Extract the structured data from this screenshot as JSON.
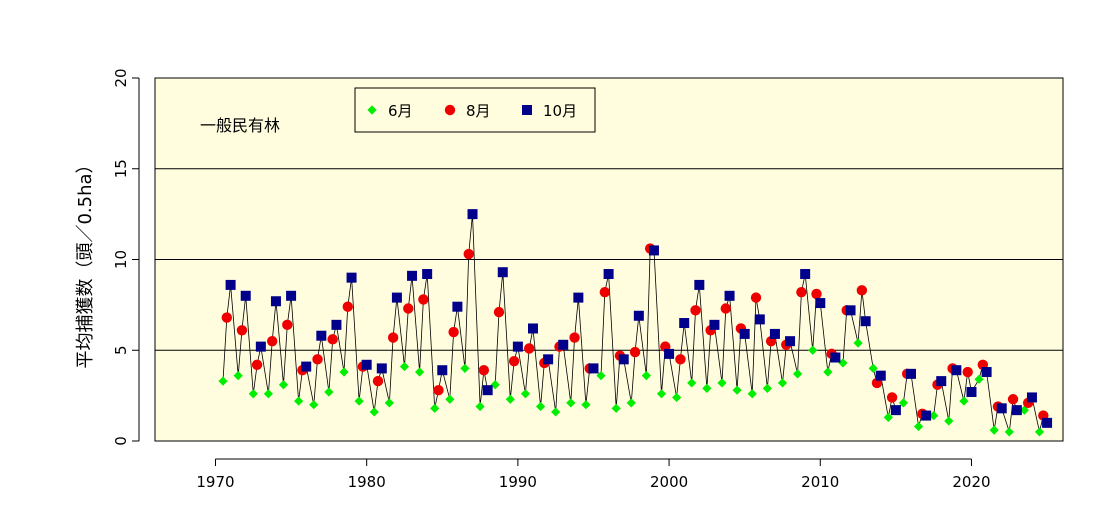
{
  "chart_data": {
    "type": "line",
    "ylabel": "平均捕獲数（頭／0.5ha）",
    "annotation": "一般民有林",
    "xlim": [
      1966,
      2025
    ],
    "ylim": [
      0,
      20
    ],
    "xticks": [
      1970,
      1980,
      1990,
      2000,
      2010,
      2020
    ],
    "yticks": [
      0,
      5,
      10,
      15,
      20
    ],
    "grid_lines_y": [
      5,
      10,
      15
    ],
    "legend_position": "top-center",
    "background_color": "#FFFDDD",
    "connector_color": "#000000",
    "series": [
      {
        "name": "6月",
        "marker": "diamond",
        "color": "#00EE00",
        "points": [
          [
            1970.5,
            3.3
          ],
          [
            1971.5,
            3.6
          ],
          [
            1972.5,
            2.6
          ],
          [
            1973.5,
            2.6
          ],
          [
            1974.5,
            3.1
          ],
          [
            1975.5,
            2.2
          ],
          [
            1976.5,
            2.0
          ],
          [
            1977.5,
            2.7
          ],
          [
            1978.5,
            3.8
          ],
          [
            1979.5,
            2.2
          ],
          [
            1980.5,
            1.6
          ],
          [
            1981.5,
            2.1
          ],
          [
            1982.5,
            4.1
          ],
          [
            1983.5,
            3.8
          ],
          [
            1984.5,
            1.8
          ],
          [
            1985.5,
            2.3
          ],
          [
            1986.5,
            4.0
          ],
          [
            1987.5,
            1.9
          ],
          [
            1988.5,
            3.1
          ],
          [
            1989.5,
            2.3
          ],
          [
            1990.5,
            2.6
          ],
          [
            1991.5,
            1.9
          ],
          [
            1992.5,
            1.6
          ],
          [
            1993.5,
            2.1
          ],
          [
            1994.5,
            2.0
          ],
          [
            1995.5,
            3.6
          ],
          [
            1996.5,
            1.8
          ],
          [
            1997.5,
            2.1
          ],
          [
            1998.5,
            3.6
          ],
          [
            1999.5,
            2.6
          ],
          [
            2000.5,
            2.4
          ],
          [
            2001.5,
            3.2
          ],
          [
            2002.5,
            2.9
          ],
          [
            2003.5,
            3.2
          ],
          [
            2004.5,
            2.8
          ],
          [
            2005.5,
            2.6
          ],
          [
            2006.5,
            2.9
          ],
          [
            2007.5,
            3.2
          ],
          [
            2008.5,
            3.7
          ],
          [
            2009.5,
            5.0
          ],
          [
            2010.5,
            3.8
          ],
          [
            2011.5,
            4.3
          ],
          [
            2012.5,
            5.4
          ],
          [
            2013.5,
            4.0
          ],
          [
            2014.5,
            1.3
          ],
          [
            2015.5,
            2.1
          ],
          [
            2016.5,
            0.8
          ],
          [
            2017.5,
            1.4
          ],
          [
            2018.5,
            1.1
          ],
          [
            2019.5,
            2.2
          ],
          [
            2020.5,
            3.4
          ],
          [
            2021.5,
            0.6
          ],
          [
            2022.5,
            0.5
          ],
          [
            2023.5,
            1.7
          ],
          [
            2024.5,
            0.5
          ]
        ]
      },
      {
        "name": "8月",
        "marker": "circle",
        "color": "#EE0000",
        "points": [
          [
            1970.75,
            6.8
          ],
          [
            1971.75,
            6.1
          ],
          [
            1972.75,
            4.2
          ],
          [
            1973.75,
            5.5
          ],
          [
            1974.75,
            6.4
          ],
          [
            1975.75,
            3.9
          ],
          [
            1976.75,
            4.5
          ],
          [
            1977.75,
            5.6
          ],
          [
            1978.75,
            7.4
          ],
          [
            1979.75,
            4.1
          ],
          [
            1980.75,
            3.3
          ],
          [
            1981.75,
            5.7
          ],
          [
            1982.75,
            7.3
          ],
          [
            1983.75,
            7.8
          ],
          [
            1984.75,
            2.8
          ],
          [
            1985.75,
            6.0
          ],
          [
            1986.75,
            10.3
          ],
          [
            1987.75,
            3.9
          ],
          [
            1988.75,
            7.1
          ],
          [
            1989.75,
            4.4
          ],
          [
            1990.75,
            5.1
          ],
          [
            1991.75,
            4.3
          ],
          [
            1992.75,
            5.2
          ],
          [
            1993.75,
            5.7
          ],
          [
            1994.75,
            4.0
          ],
          [
            1995.75,
            8.2
          ],
          [
            1996.75,
            4.7
          ],
          [
            1997.75,
            4.9
          ],
          [
            1998.75,
            10.6
          ],
          [
            1999.75,
            5.2
          ],
          [
            2000.75,
            4.5
          ],
          [
            2001.75,
            7.2
          ],
          [
            2002.75,
            6.1
          ],
          [
            2003.75,
            7.3
          ],
          [
            2004.75,
            6.2
          ],
          [
            2005.75,
            7.9
          ],
          [
            2006.75,
            5.5
          ],
          [
            2007.75,
            5.3
          ],
          [
            2008.75,
            8.2
          ],
          [
            2009.75,
            8.1
          ],
          [
            2010.75,
            4.8
          ],
          [
            2011.75,
            7.2
          ],
          [
            2012.75,
            8.3
          ],
          [
            2013.75,
            3.2
          ],
          [
            2014.75,
            2.4
          ],
          [
            2015.75,
            3.7
          ],
          [
            2016.75,
            1.5
          ],
          [
            2017.75,
            3.1
          ],
          [
            2018.75,
            4.0
          ],
          [
            2019.75,
            3.8
          ],
          [
            2020.75,
            4.2
          ],
          [
            2021.75,
            1.9
          ],
          [
            2022.75,
            2.3
          ],
          [
            2023.75,
            2.1
          ],
          [
            2024.75,
            1.4
          ]
        ]
      },
      {
        "name": "10月",
        "marker": "square",
        "color": "#00008B",
        "points": [
          [
            1971.0,
            8.6
          ],
          [
            1972.0,
            8.0
          ],
          [
            1973.0,
            5.2
          ],
          [
            1974.0,
            7.7
          ],
          [
            1975.0,
            8.0
          ],
          [
            1976.0,
            4.1
          ],
          [
            1977.0,
            5.8
          ],
          [
            1978.0,
            6.4
          ],
          [
            1979.0,
            9.0
          ],
          [
            1980.0,
            4.2
          ],
          [
            1981.0,
            4.0
          ],
          [
            1982.0,
            7.9
          ],
          [
            1983.0,
            9.1
          ],
          [
            1984.0,
            9.2
          ],
          [
            1985.0,
            3.9
          ],
          [
            1986.0,
            7.4
          ],
          [
            1987.0,
            12.5
          ],
          [
            1988.0,
            2.8
          ],
          [
            1989.0,
            9.3
          ],
          [
            1990.0,
            5.2
          ],
          [
            1991.0,
            6.2
          ],
          [
            1992.0,
            4.5
          ],
          [
            1993.0,
            5.3
          ],
          [
            1994.0,
            7.9
          ],
          [
            1995.0,
            4.0
          ],
          [
            1996.0,
            9.2
          ],
          [
            1997.0,
            4.5
          ],
          [
            1998.0,
            6.9
          ],
          [
            1999.0,
            10.5
          ],
          [
            2000.0,
            4.8
          ],
          [
            2001.0,
            6.5
          ],
          [
            2002.0,
            8.6
          ],
          [
            2003.0,
            6.4
          ],
          [
            2004.0,
            8.0
          ],
          [
            2005.0,
            5.9
          ],
          [
            2006.0,
            6.7
          ],
          [
            2007.0,
            5.9
          ],
          [
            2008.0,
            5.5
          ],
          [
            2009.0,
            9.2
          ],
          [
            2010.0,
            7.6
          ],
          [
            2011.0,
            4.6
          ],
          [
            2012.0,
            7.2
          ],
          [
            2013.0,
            6.6
          ],
          [
            2014.0,
            3.6
          ],
          [
            2015.0,
            1.7
          ],
          [
            2016.0,
            3.7
          ],
          [
            2017.0,
            1.4
          ],
          [
            2018.0,
            3.3
          ],
          [
            2019.0,
            3.9
          ],
          [
            2020.0,
            2.7
          ],
          [
            2021.0,
            3.8
          ],
          [
            2022.0,
            1.8
          ],
          [
            2023.0,
            1.7
          ],
          [
            2024.0,
            2.4
          ],
          [
            2025.0,
            1.0
          ]
        ]
      }
    ]
  }
}
